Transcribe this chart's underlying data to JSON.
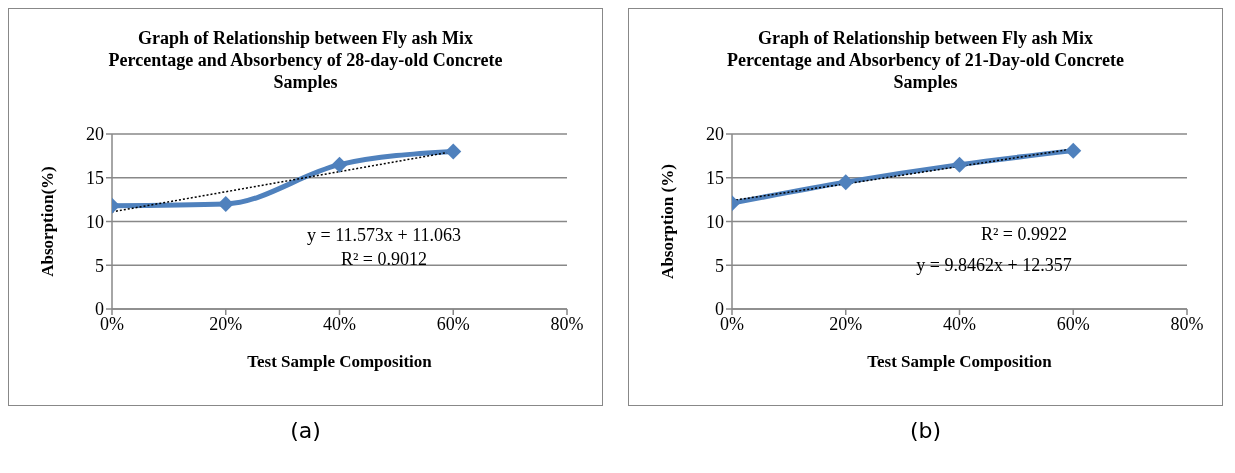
{
  "chart_data": [
    {
      "type": "line",
      "title": "Graph of Relationship between Fly ash Mix Percentage and Absorbency of 28-day-old Concrete Samples",
      "xlabel": "Test Sample Composition",
      "ylabel": "Absorption(%)",
      "x": [
        0,
        0.2,
        0.4,
        0.6
      ],
      "series": [
        {
          "color": "#4f81bd",
          "values": [
            11.8,
            12.0,
            16.5,
            18.0
          ],
          "marker": "diamond",
          "line_style": "solid"
        },
        {
          "type": "line",
          "color": "#000000",
          "values": [
            11.1,
            13.4,
            15.7,
            18.0
          ],
          "marker": "none",
          "line_style": "dotted"
        }
      ],
      "xlim": [
        0,
        0.8
      ],
      "xticks": [
        {
          "value": 0,
          "label": "0%"
        },
        {
          "value": 0.2,
          "label": "20%"
        },
        {
          "value": 0.4,
          "label": "40%"
        },
        {
          "value": 0.6,
          "label": "60%"
        },
        {
          "value": 0.8,
          "label": "80%"
        }
      ],
      "ylim": [
        0,
        20
      ],
      "yticks": [
        0,
        5,
        10,
        15,
        20
      ],
      "grid": "y",
      "annotations": [
        "y = 11.573x + 11.063",
        "R² = 0.9012",
        "(a)"
      ]
    },
    {
      "type": "line",
      "title": "Graph of Relationship between Fly ash Mix Percentage and Absorbency of 21-Day-old Concrete Samples",
      "xlabel": "Test Sample Composition",
      "ylabel": "Absorption (%)",
      "x": [
        0,
        0.2,
        0.4,
        0.6
      ],
      "series": [
        {
          "color": "#4f81bd",
          "values": [
            12.1,
            14.5,
            16.5,
            18.1
          ],
          "marker": "diamond",
          "line_style": "solid"
        },
        {
          "type": "line",
          "color": "#000000",
          "values": [
            12.4,
            14.3,
            16.3,
            18.3
          ],
          "marker": "none",
          "line_style": "dotted"
        }
      ],
      "xlim": [
        0,
        0.8
      ],
      "xticks": [
        {
          "value": 0,
          "label": "0%"
        },
        {
          "value": 0.2,
          "label": "20%"
        },
        {
          "value": 0.4,
          "label": "40%"
        },
        {
          "value": 0.6,
          "label": "60%"
        },
        {
          "value": 0.8,
          "label": "80%"
        }
      ],
      "ylim": [
        0,
        20
      ],
      "yticks": [
        0,
        5,
        10,
        15,
        20
      ],
      "grid": "y",
      "annotations": [
        "R² = 0.9922",
        "y = 9.8462x + 12.357",
        "(b)"
      ]
    }
  ]
}
